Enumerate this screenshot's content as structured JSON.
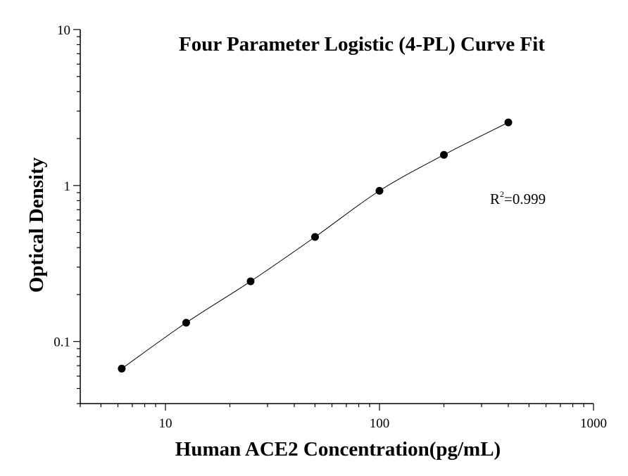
{
  "chart_data": {
    "type": "scatter",
    "title": "Four Parameter Logistic (4-PL) Curve Fit",
    "xlabel": "Human ACE2 Concentration(pg/mL)",
    "ylabel": "Optical Density",
    "x_scale": "log",
    "y_scale": "log",
    "xlim": [
      4,
      1000
    ],
    "ylim": [
      0.04,
      10
    ],
    "x_ticks": [
      10,
      100,
      1000
    ],
    "x_tick_labels": [
      "10",
      "100",
      "1000"
    ],
    "y_ticks": [
      0.1,
      1,
      10
    ],
    "y_tick_labels": [
      "0.1",
      "1",
      "10"
    ],
    "grid": false,
    "series": [
      {
        "marker": "circle",
        "color": "#000000",
        "x": [
          6.25,
          12.5,
          25,
          50,
          100,
          200,
          400
        ],
        "y": [
          0.067,
          0.132,
          0.243,
          0.468,
          0.925,
          1.573,
          2.538
        ]
      }
    ],
    "fit_curve": {
      "model": "4-PL",
      "color": "#000000"
    },
    "annotation": {
      "base": "R",
      "sup": "2",
      "rest": "=0.999"
    }
  }
}
